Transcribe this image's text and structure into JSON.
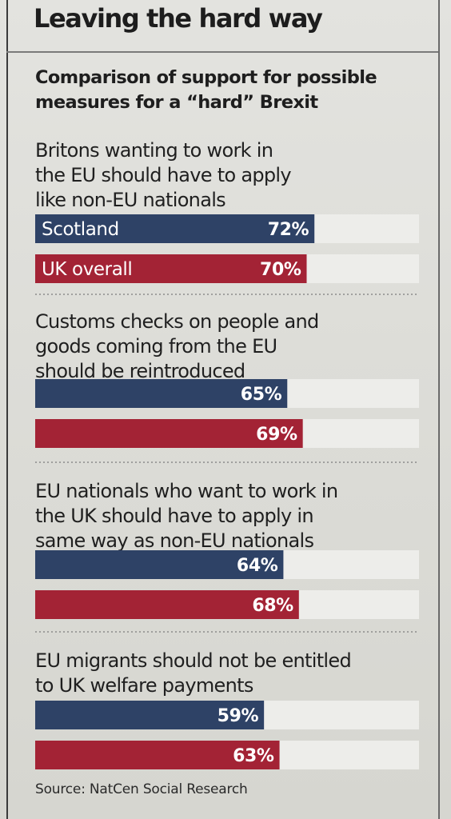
{
  "header": {
    "title": "Leaving the hard way",
    "subtitle": "Comparison of support for possible measures for a “hard” Brexit"
  },
  "footer": {
    "source": "Source: NatCen Social Research"
  },
  "colors": {
    "scotland": "#2e4266",
    "uk_overall": "#a32335",
    "track": "#ededea",
    "divider": "#8a8a8a"
  },
  "chart_data": {
    "type": "bar",
    "orientation": "horizontal",
    "title": "Leaving the hard way",
    "subtitle": "Comparison of support for possible measures for a “hard” Brexit",
    "value_unit": "%",
    "xlim": [
      0,
      100
    ],
    "grid": false,
    "legend": "inline labels on first group",
    "categories": [
      "Britons wanting to work in the EU should have to apply like non-EU nationals",
      "Customs checks on people and goods coming from the EU should be reintroduced",
      "EU nationals who want to work in the UK should have to apply in same way as non-EU nationals",
      "EU migrants should not be entitled to UK welfare payments"
    ],
    "category_lines": [
      [
        "Britons wanting to work in",
        "the EU should have to apply",
        "like non-EU nationals"
      ],
      [
        "Customs checks on people and",
        "goods coming from the EU",
        "should be reintroduced"
      ],
      [
        "EU nationals who want to work in",
        "the UK should have to apply in",
        "same way as non-EU nationals"
      ],
      [
        "EU migrants should not be entitled",
        "to UK welfare payments"
      ]
    ],
    "series": [
      {
        "name": "Scotland",
        "values": [
          72,
          65,
          64,
          59
        ],
        "labels": [
          "72%",
          "65%",
          "64%",
          "59%"
        ]
      },
      {
        "name": "UK overall",
        "values": [
          70,
          69,
          68,
          63
        ],
        "labels": [
          "70%",
          "69%",
          "68%",
          "63%"
        ]
      }
    ]
  }
}
